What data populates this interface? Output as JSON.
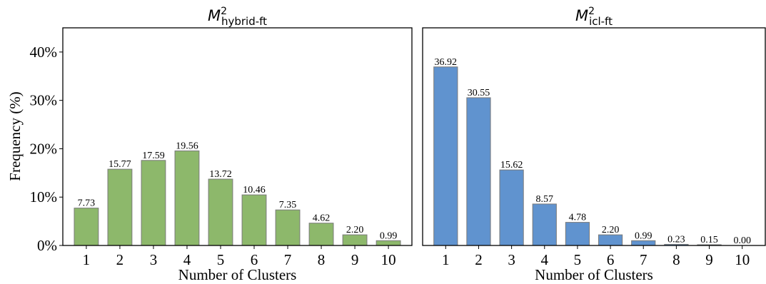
{
  "ylabel": "Frequency (%)",
  "ytick_labels": [
    "0%",
    "10%",
    "20%",
    "30%",
    "40%"
  ],
  "chart_data": [
    {
      "type": "bar",
      "title": {
        "base": "M",
        "sup": "2",
        "sub": "hybrid-ft"
      },
      "xlabel": "Number of Clusters",
      "ylabel": "Frequency (%)",
      "categories": [
        "1",
        "2",
        "3",
        "4",
        "5",
        "6",
        "7",
        "8",
        "9",
        "10"
      ],
      "values": [
        7.73,
        15.77,
        17.59,
        19.56,
        13.72,
        10.46,
        7.35,
        4.62,
        2.2,
        0.99
      ],
      "value_labels": [
        "7.73",
        "15.77",
        "17.59",
        "19.56",
        "13.72",
        "10.46",
        "7.35",
        "4.62",
        "2.20",
        "0.99"
      ],
      "ylim": [
        0,
        45
      ],
      "yticks": [
        0,
        10,
        20,
        30,
        40
      ],
      "color": "#8db86b",
      "grid": false
    },
    {
      "type": "bar",
      "title": {
        "base": "M",
        "sup": "2",
        "sub": "icl-ft"
      },
      "xlabel": "Number of Clusters",
      "categories": [
        "1",
        "2",
        "3",
        "4",
        "5",
        "6",
        "7",
        "8",
        "9",
        "10"
      ],
      "values": [
        36.92,
        30.55,
        15.62,
        8.57,
        4.78,
        2.2,
        0.99,
        0.23,
        0.15,
        0.0
      ],
      "value_labels": [
        "36.92",
        "30.55",
        "15.62",
        "8.57",
        "4.78",
        "2.20",
        "0.99",
        "0.23",
        "0.15",
        "0.00"
      ],
      "ylim": [
        0,
        45
      ],
      "yticks": [
        0,
        10,
        20,
        30,
        40
      ],
      "color": "#6093cf",
      "grid": false
    }
  ]
}
